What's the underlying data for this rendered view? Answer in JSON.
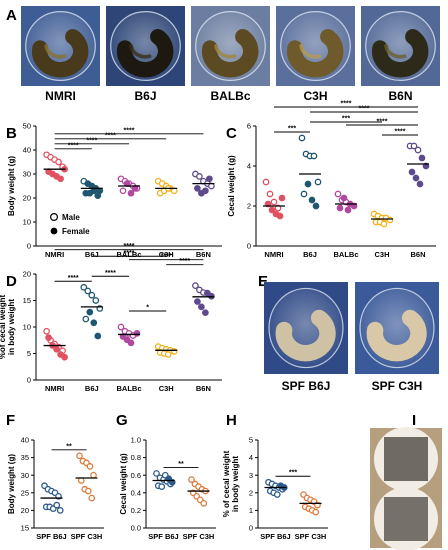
{
  "panel_labels": {
    "A": "A",
    "B": "B",
    "C": "C",
    "D": "D",
    "E": "E",
    "F": "F",
    "G": "G",
    "H": "H",
    "I": "I"
  },
  "photos_a": [
    {
      "label": "NMRI",
      "bg": "#3f5d95",
      "cecum": "#4a3a1c",
      "cecum_hi": "#8a7030"
    },
    {
      "label": "B6J",
      "bg": "#2d4677",
      "cecum": "#1d1810",
      "cecum_hi": "#3a3018"
    },
    {
      "label": "BALBc",
      "bg": "#6b7da0",
      "cecum": "#5c4a22",
      "cecum_hi": "#a0863e"
    },
    {
      "label": "C3H",
      "bg": "#5a6f9c",
      "cecum": "#6e5a2a",
      "cecum_hi": "#b59a4e"
    },
    {
      "label": "B6N",
      "bg": "#526997",
      "cecum": "#2e2a1a",
      "cecum_hi": "#6b6030"
    }
  ],
  "photos_e": [
    {
      "label": "SPF B6J",
      "bg": "#2f4a86",
      "cecum": "#cfc2a4"
    },
    {
      "label": "SPF C3H",
      "bg": "#3b5a99",
      "cecum": "#d9c8a8"
    }
  ],
  "legend": {
    "male": "Male",
    "female": "Female"
  },
  "colors": {
    "NMRI": "#e05261",
    "B6J": "#1f5670",
    "BALBc": "#b048a0",
    "C3H": "#f2b11a",
    "B6N": "#5e4b8d",
    "SPF_B6J": "#2e5a8a",
    "SPF_C3H": "#e07a3a"
  },
  "chart_data": [
    {
      "id": "B",
      "type": "scatter",
      "ylabel": "Body weight (g)",
      "ylim": [
        0,
        50
      ],
      "yticks": [
        0,
        10,
        20,
        30,
        40,
        50
      ],
      "categories": [
        "NMRI",
        "B6J",
        "BALBc",
        "C3H",
        "B6N"
      ],
      "series": [
        {
          "cat": "NMRI",
          "mean": 32,
          "male": [
            38,
            37,
            36,
            35,
            33
          ],
          "female": [
            31,
            30,
            29,
            28,
            32
          ]
        },
        {
          "cat": "B6J",
          "mean": 24,
          "male": [
            27
          ],
          "female": [
            26,
            25,
            24,
            23,
            22,
            22,
            23,
            21
          ]
        },
        {
          "cat": "BALBc",
          "mean": 25,
          "male": [
            28,
            27,
            26,
            25,
            24,
            23
          ],
          "female": [
            26,
            22,
            24
          ]
        },
        {
          "cat": "C3H",
          "mean": 24,
          "male": [
            27,
            26,
            25,
            24,
            23,
            22,
            23,
            24
          ],
          "female": []
        },
        {
          "cat": "B6N",
          "mean": 26,
          "male": [
            30,
            29,
            27,
            26,
            25
          ],
          "female": [
            24,
            22,
            23,
            28
          ]
        }
      ],
      "brackets": [
        {
          "from": 0,
          "to": 1,
          "label": "****"
        },
        {
          "from": 0,
          "to": 2,
          "label": "****"
        },
        {
          "from": 0,
          "to": 3,
          "label": "****"
        },
        {
          "from": 0,
          "to": 4,
          "label": "****"
        }
      ]
    },
    {
      "id": "C",
      "type": "scatter",
      "ylabel": "Cecal weight (g)",
      "ylim": [
        0,
        6
      ],
      "yticks": [
        0,
        2,
        4,
        6
      ],
      "categories": [
        "NMRI",
        "B6J",
        "BALBc",
        "C3H",
        "B6N"
      ],
      "series": [
        {
          "cat": "NMRI",
          "mean": 2.0,
          "male": [
            3.2,
            2.6,
            2.2,
            1.9
          ],
          "female": [
            2.4,
            2.1,
            1.8,
            1.6,
            1.5
          ]
        },
        {
          "cat": "B6J",
          "mean": 3.6,
          "male": [
            5.4,
            4.6,
            4.5,
            4.5,
            3.2,
            2.6
          ],
          "female": [
            3.1,
            2.3,
            2.0
          ]
        },
        {
          "cat": "BALBc",
          "mean": 2.1,
          "male": [
            2.6,
            2.3,
            2.2
          ],
          "female": [
            2.1,
            2.0,
            1.9,
            2.4,
            1.8
          ]
        },
        {
          "cat": "C3H",
          "mean": 1.35,
          "male": [
            1.6,
            1.5,
            1.4,
            1.4,
            1.3,
            1.2,
            1.2,
            1.1
          ],
          "female": []
        },
        {
          "cat": "B6N",
          "mean": 4.1,
          "male": [
            5.0,
            5.0,
            4.8
          ],
          "female": [
            4.4,
            4.0,
            3.7,
            3.4,
            3.1
          ]
        }
      ],
      "brackets": [
        {
          "from": 0,
          "to": 1,
          "label": "***"
        },
        {
          "from": 1,
          "to": 3,
          "label": "***"
        },
        {
          "from": 2,
          "to": 4,
          "label": "****"
        },
        {
          "from": 3,
          "to": 4,
          "label": "****"
        },
        {
          "from": 1,
          "to": 4,
          "label": "****"
        },
        {
          "from": 0,
          "to": 4,
          "label": "****"
        }
      ]
    },
    {
      "id": "D",
      "type": "scatter",
      "ylabel": "%of cecal weight\nin body weight",
      "ylim": [
        0,
        20
      ],
      "yticks": [
        0,
        5,
        10,
        15,
        20
      ],
      "categories": [
        "NMRI",
        "B6J",
        "BALBc",
        "C3H",
        "B6N"
      ],
      "series": [
        {
          "cat": "NMRI",
          "mean": 6.5,
          "male": [
            9.2,
            7.5,
            6.8,
            6.2,
            5.5
          ],
          "female": [
            8.0,
            6.5,
            5.8,
            4.8,
            4.3
          ]
        },
        {
          "cat": "B6J",
          "mean": 13.8,
          "male": [
            17.5,
            16.8,
            16.0,
            15.0,
            13.5,
            11.5
          ],
          "female": [
            12.8,
            10.8,
            8.3
          ]
        },
        {
          "cat": "BALBc",
          "mean": 8.6,
          "male": [
            10.0,
            9.2,
            8.8,
            8.4
          ],
          "female": [
            8.8,
            8.2,
            7.6,
            7.0
          ]
        },
        {
          "cat": "C3H",
          "mean": 5.6,
          "male": [
            6.3,
            6.0,
            5.8,
            5.6,
            5.4,
            5.2,
            5.0,
            4.8
          ],
          "female": []
        },
        {
          "cat": "B6N",
          "mean": 15.7,
          "male": [
            17.8,
            17.0,
            16.5
          ],
          "female": [
            16.4,
            15.8,
            14.8,
            13.8,
            12.7
          ]
        }
      ],
      "brackets": [
        {
          "from": 0,
          "to": 1,
          "label": "****"
        },
        {
          "from": 1,
          "to": 2,
          "label": "****"
        },
        {
          "from": 2,
          "to": 3,
          "label": "*"
        },
        {
          "from": 2,
          "to": 4,
          "label": "****"
        },
        {
          "from": 3,
          "to": 4,
          "label": "****"
        },
        {
          "from": 1,
          "to": 3,
          "label": "****"
        },
        {
          "from": 0,
          "to": 4,
          "label": "****"
        }
      ]
    },
    {
      "id": "F",
      "type": "scatter",
      "ylabel": "Body weight (g)",
      "ylim": [
        15,
        40
      ],
      "yticks": [
        15,
        20,
        25,
        30,
        35,
        40
      ],
      "categories": [
        "SPF B6J",
        "SPF C3H"
      ],
      "series": [
        {
          "cat": "SPF B6J",
          "mean": 23.5,
          "open": [
            27,
            26,
            25.5,
            25,
            24,
            21,
            21,
            20.5,
            21.5,
            20
          ],
          "filled": []
        },
        {
          "cat": "SPF C3H",
          "mean": 29.2,
          "open": [
            35.5,
            34,
            33.5,
            32.5,
            30,
            28.5,
            26,
            25.5,
            23.5
          ],
          "filled": []
        }
      ],
      "brackets": [
        {
          "from": 0,
          "to": 1,
          "label": "**"
        }
      ]
    },
    {
      "id": "G",
      "type": "scatter",
      "ylabel": "Cecal weight (g)",
      "ylim": [
        0.0,
        1.0
      ],
      "yticks": [
        0.0,
        0.2,
        0.4,
        0.6,
        0.8,
        1.0
      ],
      "categories": [
        "SPF B6J",
        "SPF C3H"
      ],
      "series": [
        {
          "cat": "SPF B6J",
          "mean": 0.54,
          "open": [
            0.62,
            0.57,
            0.55,
            0.53,
            0.5,
            0.48,
            0.47,
            0.6
          ],
          "filled": [
            0.56,
            0.52
          ]
        },
        {
          "cat": "SPF C3H",
          "mean": 0.42,
          "open": [
            0.55,
            0.5,
            0.47,
            0.44,
            0.42,
            0.4,
            0.36,
            0.32,
            0.28
          ],
          "filled": []
        }
      ],
      "brackets": [
        {
          "from": 0,
          "to": 1,
          "label": "**"
        }
      ]
    },
    {
      "id": "H",
      "type": "scatter",
      "ylabel": "% of cecal weight\nin body weight",
      "ylim": [
        0,
        5
      ],
      "yticks": [
        0,
        1,
        2,
        3,
        4,
        5
      ],
      "categories": [
        "SPF B6J",
        "SPF C3H"
      ],
      "series": [
        {
          "cat": "SPF B6J",
          "mean": 2.3,
          "open": [
            2.6,
            2.5,
            2.4,
            2.3,
            2.2,
            2.1,
            2.0,
            1.9
          ],
          "filled": [
            2.4,
            2.3
          ]
        },
        {
          "cat": "SPF C3H",
          "mean": 1.4,
          "open": [
            1.9,
            1.7,
            1.6,
            1.5,
            1.3,
            1.2,
            1.1,
            1.0,
            0.9
          ],
          "filled": []
        }
      ],
      "brackets": [
        {
          "from": 0,
          "to": 1,
          "label": "***"
        }
      ]
    }
  ]
}
